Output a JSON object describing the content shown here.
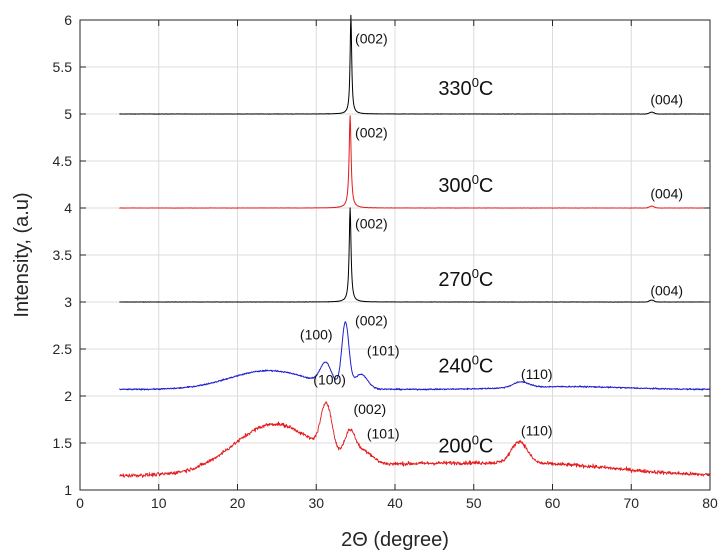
{
  "chart_data": {
    "type": "line",
    "title": "",
    "xlabel": "2Θ (degree)",
    "ylabel": "Intensity, (a.u)",
    "xlim": [
      0,
      80
    ],
    "ylim": [
      1,
      6
    ],
    "x_ticks": [
      0,
      10,
      20,
      30,
      40,
      50,
      60,
      70,
      80
    ],
    "y_ticks": [
      1,
      1.5,
      2,
      2.5,
      3,
      3.5,
      4,
      4.5,
      5,
      5.5,
      6
    ],
    "grid": true,
    "series": [
      {
        "name": "330°C",
        "color": "#000000",
        "baseline": 5.0,
        "noise": 0.003,
        "x_range": [
          5,
          80
        ],
        "features": [
          {
            "center": 34.4,
            "width": 0.12,
            "height": 1.05,
            "shape": "lorentz"
          },
          {
            "center": 72.6,
            "width": 0.3,
            "height": 0.02,
            "shape": "gauss"
          }
        ]
      },
      {
        "name": "300°C",
        "color": "#e41a1c",
        "baseline": 4.0,
        "noise": 0.003,
        "x_range": [
          5,
          80
        ],
        "features": [
          {
            "center": 34.3,
            "width": 0.15,
            "height": 0.98,
            "shape": "lorentz"
          },
          {
            "center": 72.6,
            "width": 0.3,
            "height": 0.02,
            "shape": "gauss"
          }
        ]
      },
      {
        "name": "270°C",
        "color": "#000000",
        "baseline": 3.0,
        "noise": 0.003,
        "x_range": [
          5,
          80
        ],
        "features": [
          {
            "center": 34.3,
            "width": 0.14,
            "height": 1.0,
            "shape": "lorentz"
          },
          {
            "center": 72.6,
            "width": 0.3,
            "height": 0.02,
            "shape": "gauss"
          }
        ]
      },
      {
        "name": "240°C",
        "color": "#1f1fd0",
        "baseline": 2.07,
        "noise": 0.012,
        "x_range": [
          5,
          80
        ],
        "features": [
          {
            "center": 24.0,
            "width": 5.0,
            "height": 0.2,
            "shape": "gauss"
          },
          {
            "center": 31.2,
            "width": 0.7,
            "height": 0.22,
            "shape": "gauss"
          },
          {
            "center": 33.7,
            "width": 0.45,
            "height": 0.68,
            "shape": "gauss"
          },
          {
            "center": 35.7,
            "width": 0.8,
            "height": 0.15,
            "shape": "gauss"
          },
          {
            "center": 56.0,
            "width": 1.0,
            "height": 0.06,
            "shape": "gauss"
          },
          {
            "center": 62.0,
            "width": 7.0,
            "height": 0.03,
            "shape": "gauss"
          }
        ]
      },
      {
        "name": "200°C",
        "color": "#e41a1c",
        "baseline": 1.15,
        "noise": 0.035,
        "x_range": [
          5,
          80
        ],
        "features": [
          {
            "center": 24.5,
            "width": 5.0,
            "height": 0.5,
            "shape": "gauss"
          },
          {
            "center": 31.3,
            "width": 0.7,
            "height": 0.5,
            "shape": "gauss"
          },
          {
            "center": 34.3,
            "width": 0.7,
            "height": 0.3,
            "shape": "gauss"
          },
          {
            "center": 36.2,
            "width": 1.0,
            "height": 0.12,
            "shape": "gauss"
          },
          {
            "center": 45.0,
            "width": 15.0,
            "height": 0.13,
            "shape": "gauss"
          },
          {
            "center": 55.8,
            "width": 1.0,
            "height": 0.23,
            "shape": "gauss"
          },
          {
            "center": 62.0,
            "width": 8.0,
            "height": 0.05,
            "shape": "gauss"
          }
        ]
      }
    ],
    "temperature_labels": [
      {
        "num": "330",
        "sup": "0",
        "unit": "C",
        "x": 45.5,
        "y": 5.2
      },
      {
        "num": "300",
        "sup": "0",
        "unit": "C",
        "x": 45.5,
        "y": 4.17
      },
      {
        "num": "270",
        "sup": "0",
        "unit": "C",
        "x": 45.5,
        "y": 3.17
      },
      {
        "num": "240",
        "sup": "0",
        "unit": "C",
        "x": 45.5,
        "y": 2.25
      },
      {
        "num": "200",
        "sup": "0",
        "unit": "C",
        "x": 45.5,
        "y": 1.4
      }
    ],
    "peak_labels": [
      {
        "text": "(002)",
        "x": 37.0,
        "y": 5.75
      },
      {
        "text": "(004)",
        "x": 74.5,
        "y": 5.1
      },
      {
        "text": "(002)",
        "x": 37.0,
        "y": 4.75
      },
      {
        "text": "(004)",
        "x": 74.5,
        "y": 4.1
      },
      {
        "text": "(002)",
        "x": 37.0,
        "y": 3.78
      },
      {
        "text": "(004)",
        "x": 74.5,
        "y": 3.07
      },
      {
        "text": "(100)",
        "x": 30.0,
        "y": 2.6
      },
      {
        "text": "(002)",
        "x": 37.0,
        "y": 2.75
      },
      {
        "text": "(101)",
        "x": 38.5,
        "y": 2.43
      },
      {
        "text": "(110)",
        "x": 58.0,
        "y": 2.18
      },
      {
        "text": "(100)",
        "x": 31.7,
        "y": 2.12
      },
      {
        "text": "(002)",
        "x": 36.8,
        "y": 1.81
      },
      {
        "text": "(101)",
        "x": 38.5,
        "y": 1.55
      },
      {
        "text": "(110)",
        "x": 58.0,
        "y": 1.58
      }
    ]
  }
}
